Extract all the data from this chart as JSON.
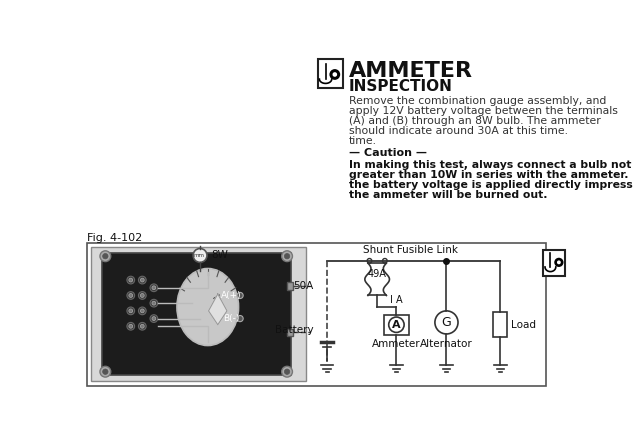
{
  "title": "AMMETER",
  "subtitle": "INSPECTION",
  "body_line1": "Remove the combination gauge assembly, and",
  "body_line2": "apply 12V battery voltage between the terminals",
  "body_line3": "(A) and (B) through an 8W bulb. The ammeter",
  "body_line4": "should indicate around 30A at this time.",
  "body_line5": "time.",
  "caution_header": "— Caution —",
  "caution_line1": "In making this test, always connect a bulb not",
  "caution_line2": "greater than 10W in series with the ammeter. If",
  "caution_line3": "the battery voltage is applied directly impressed,",
  "caution_line4": "the ammeter will be burned out.",
  "fig_label": "Fig. 4-102",
  "bg_color": "#ffffff",
  "text_color": "#111111"
}
